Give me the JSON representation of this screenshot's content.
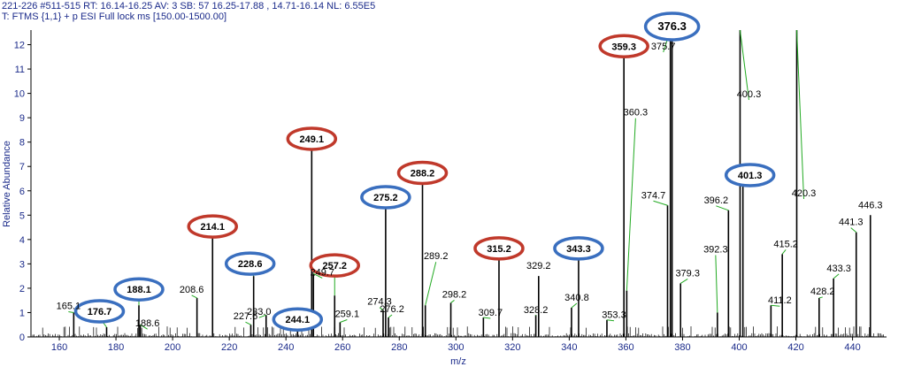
{
  "header": {
    "line1": "221-226 #511-515  RT: 16.14-16.25  AV: 3  SB: 57  16.25-17.88 , 14.71-16.14  NL: 6.55E5",
    "line2": "T: FTMS {1,1} + p ESI Full lock ms [150.00-1500.00]"
  },
  "colors": {
    "text": "#1a2a8a",
    "stick": "#000000",
    "label_line": "#22aa22",
    "circle_red": "#c0392b",
    "circle_blue": "#3a6fbf",
    "axis": "#000000"
  },
  "chart_data": {
    "type": "bar",
    "title": "",
    "xlabel": "m/z",
    "ylabel": "Relative Abundance",
    "xlim": [
      150,
      452
    ],
    "ylim": [
      0,
      12.6
    ],
    "x_ticks": [
      160,
      180,
      200,
      220,
      240,
      260,
      280,
      300,
      320,
      340,
      360,
      380,
      400,
      420,
      440
    ],
    "y_ticks": [
      0,
      1,
      2,
      3,
      4,
      5,
      6,
      7,
      8,
      9,
      10,
      11,
      12
    ],
    "peaks": [
      {
        "mz": 165.1,
        "y": 1.0
      },
      {
        "mz": 176.7,
        "y": 0.4
      },
      {
        "mz": 188.1,
        "y": 1.3
      },
      {
        "mz": 188.6,
        "y": 0.5
      },
      {
        "mz": 208.6,
        "y": 1.6
      },
      {
        "mz": 214.1,
        "y": 4.1
      },
      {
        "mz": 227.6,
        "y": 0.5
      },
      {
        "mz": 228.6,
        "y": 2.5
      },
      {
        "mz": 233.0,
        "y": 0.9
      },
      {
        "mz": 244.1,
        "y": 0.5
      },
      {
        "mz": 249.1,
        "y": 7.7
      },
      {
        "mz": 249.7,
        "y": 2.6
      },
      {
        "mz": 257.2,
        "y": 1.7
      },
      {
        "mz": 259.1,
        "y": 0.6
      },
      {
        "mz": 274.3,
        "y": 1.1
      },
      {
        "mz": 275.2,
        "y": 5.3
      },
      {
        "mz": 276.2,
        "y": 0.8
      },
      {
        "mz": 288.2,
        "y": 6.3
      },
      {
        "mz": 289.2,
        "y": 1.3
      },
      {
        "mz": 298.2,
        "y": 1.4
      },
      {
        "mz": 309.7,
        "y": 0.8
      },
      {
        "mz": 315.2,
        "y": 3.2
      },
      {
        "mz": 328.2,
        "y": 0.9
      },
      {
        "mz": 329.2,
        "y": 2.5
      },
      {
        "mz": 340.8,
        "y": 1.2
      },
      {
        "mz": 343.3,
        "y": 3.2
      },
      {
        "mz": 353.3,
        "y": 0.7
      },
      {
        "mz": 359.3,
        "y": 11.5
      },
      {
        "mz": 360.3,
        "y": 1.9
      },
      {
        "mz": 374.7,
        "y": 5.4
      },
      {
        "mz": 375.7,
        "y": 12.6
      },
      {
        "mz": 376.3,
        "y": 12.6
      },
      {
        "mz": 379.3,
        "y": 2.2
      },
      {
        "mz": 392.3,
        "y": 1.0
      },
      {
        "mz": 396.2,
        "y": 5.2
      },
      {
        "mz": 400.3,
        "y": 12.6
      },
      {
        "mz": 401.3,
        "y": 6.9
      },
      {
        "mz": 411.2,
        "y": 1.3
      },
      {
        "mz": 415.2,
        "y": 3.4
      },
      {
        "mz": 420.3,
        "y": 12.6
      },
      {
        "mz": 428.2,
        "y": 1.6
      },
      {
        "mz": 433.3,
        "y": 2.4
      },
      {
        "mz": 441.3,
        "y": 4.3
      },
      {
        "mz": 446.3,
        "y": 5.0
      }
    ],
    "labels": [
      {
        "text": "165.1",
        "mz": 165.1,
        "y": 1.0,
        "circle": "none"
      },
      {
        "text": "176.7",
        "mz": 176.7,
        "y": 0.4,
        "circle": "blue"
      },
      {
        "text": "188.1",
        "mz": 188.1,
        "y": 1.3,
        "circle": "blue"
      },
      {
        "text": "188.6",
        "mz": 188.6,
        "y": 0.5,
        "circle": "none"
      },
      {
        "text": "208.6",
        "mz": 208.6,
        "y": 1.6,
        "circle": "none"
      },
      {
        "text": "214.1",
        "mz": 214.1,
        "y": 4.1,
        "circle": "red"
      },
      {
        "text": "227.6",
        "mz": 227.6,
        "y": 0.5,
        "circle": "none"
      },
      {
        "text": "228.6",
        "mz": 228.6,
        "y": 2.5,
        "circle": "blue"
      },
      {
        "text": "233.0",
        "mz": 233.0,
        "y": 0.9,
        "circle": "none"
      },
      {
        "text": "244.1",
        "mz": 244.1,
        "y": 0.5,
        "circle": "blue"
      },
      {
        "text": "249.1",
        "mz": 249.1,
        "y": 7.7,
        "circle": "red"
      },
      {
        "text": "249.7",
        "mz": 249.7,
        "y": 2.6,
        "circle": "none"
      },
      {
        "text": "257.2",
        "mz": 257.2,
        "y": 1.7,
        "circle": "red"
      },
      {
        "text": "259.1",
        "mz": 259.1,
        "y": 0.6,
        "circle": "none"
      },
      {
        "text": "274.3",
        "mz": 274.3,
        "y": 1.1,
        "circle": "none"
      },
      {
        "text": "275.2",
        "mz": 275.2,
        "y": 5.3,
        "circle": "blue"
      },
      {
        "text": "276.2",
        "mz": 276.2,
        "y": 0.8,
        "circle": "none"
      },
      {
        "text": "288.2",
        "mz": 288.2,
        "y": 6.3,
        "circle": "red"
      },
      {
        "text": "289.2",
        "mz": 289.2,
        "y": 1.3,
        "circle": "none"
      },
      {
        "text": "298.2",
        "mz": 298.2,
        "y": 1.4,
        "circle": "none"
      },
      {
        "text": "309.7",
        "mz": 309.7,
        "y": 0.8,
        "circle": "none"
      },
      {
        "text": "315.2",
        "mz": 315.2,
        "y": 3.2,
        "circle": "red"
      },
      {
        "text": "328.2",
        "mz": 328.2,
        "y": 0.9,
        "circle": "none"
      },
      {
        "text": "329.2",
        "mz": 329.2,
        "y": 2.5,
        "circle": "none"
      },
      {
        "text": "340.8",
        "mz": 340.8,
        "y": 1.2,
        "circle": "none"
      },
      {
        "text": "343.3",
        "mz": 343.3,
        "y": 3.2,
        "circle": "blue"
      },
      {
        "text": "353.3",
        "mz": 353.3,
        "y": 0.7,
        "circle": "none"
      },
      {
        "text": "359.3",
        "mz": 359.3,
        "y": 11.5,
        "circle": "red"
      },
      {
        "text": "360.3",
        "mz": 360.3,
        "y": 1.9,
        "circle": "none"
      },
      {
        "text": "374.7",
        "mz": 374.7,
        "y": 5.4,
        "circle": "none"
      },
      {
        "text": "375.7",
        "mz": 375.7,
        "y": 12.6,
        "circle": "none"
      },
      {
        "text": "376.3",
        "mz": 376.3,
        "y": 12.6,
        "circle": "blue"
      },
      {
        "text": "379.3",
        "mz": 379.3,
        "y": 2.2,
        "circle": "none"
      },
      {
        "text": "392.3",
        "mz": 392.3,
        "y": 1.0,
        "circle": "none"
      },
      {
        "text": "396.2",
        "mz": 396.2,
        "y": 5.2,
        "circle": "none"
      },
      {
        "text": "400.3",
        "mz": 400.3,
        "y": 12.6,
        "circle": "none"
      },
      {
        "text": "401.3",
        "mz": 401.3,
        "y": 6.9,
        "circle": "blue"
      },
      {
        "text": "411.2",
        "mz": 411.2,
        "y": 1.3,
        "circle": "none"
      },
      {
        "text": "415.2",
        "mz": 415.2,
        "y": 3.4,
        "circle": "none"
      },
      {
        "text": "420.3",
        "mz": 420.3,
        "y": 12.6,
        "circle": "none"
      },
      {
        "text": "428.2",
        "mz": 428.2,
        "y": 1.6,
        "circle": "none"
      },
      {
        "text": "433.3",
        "mz": 433.3,
        "y": 2.4,
        "circle": "none"
      },
      {
        "text": "441.3",
        "mz": 441.3,
        "y": 4.3,
        "circle": "none"
      },
      {
        "text": "446.3",
        "mz": 446.3,
        "y": 5.0,
        "circle": "none"
      }
    ],
    "grid": false,
    "legend": "none"
  }
}
